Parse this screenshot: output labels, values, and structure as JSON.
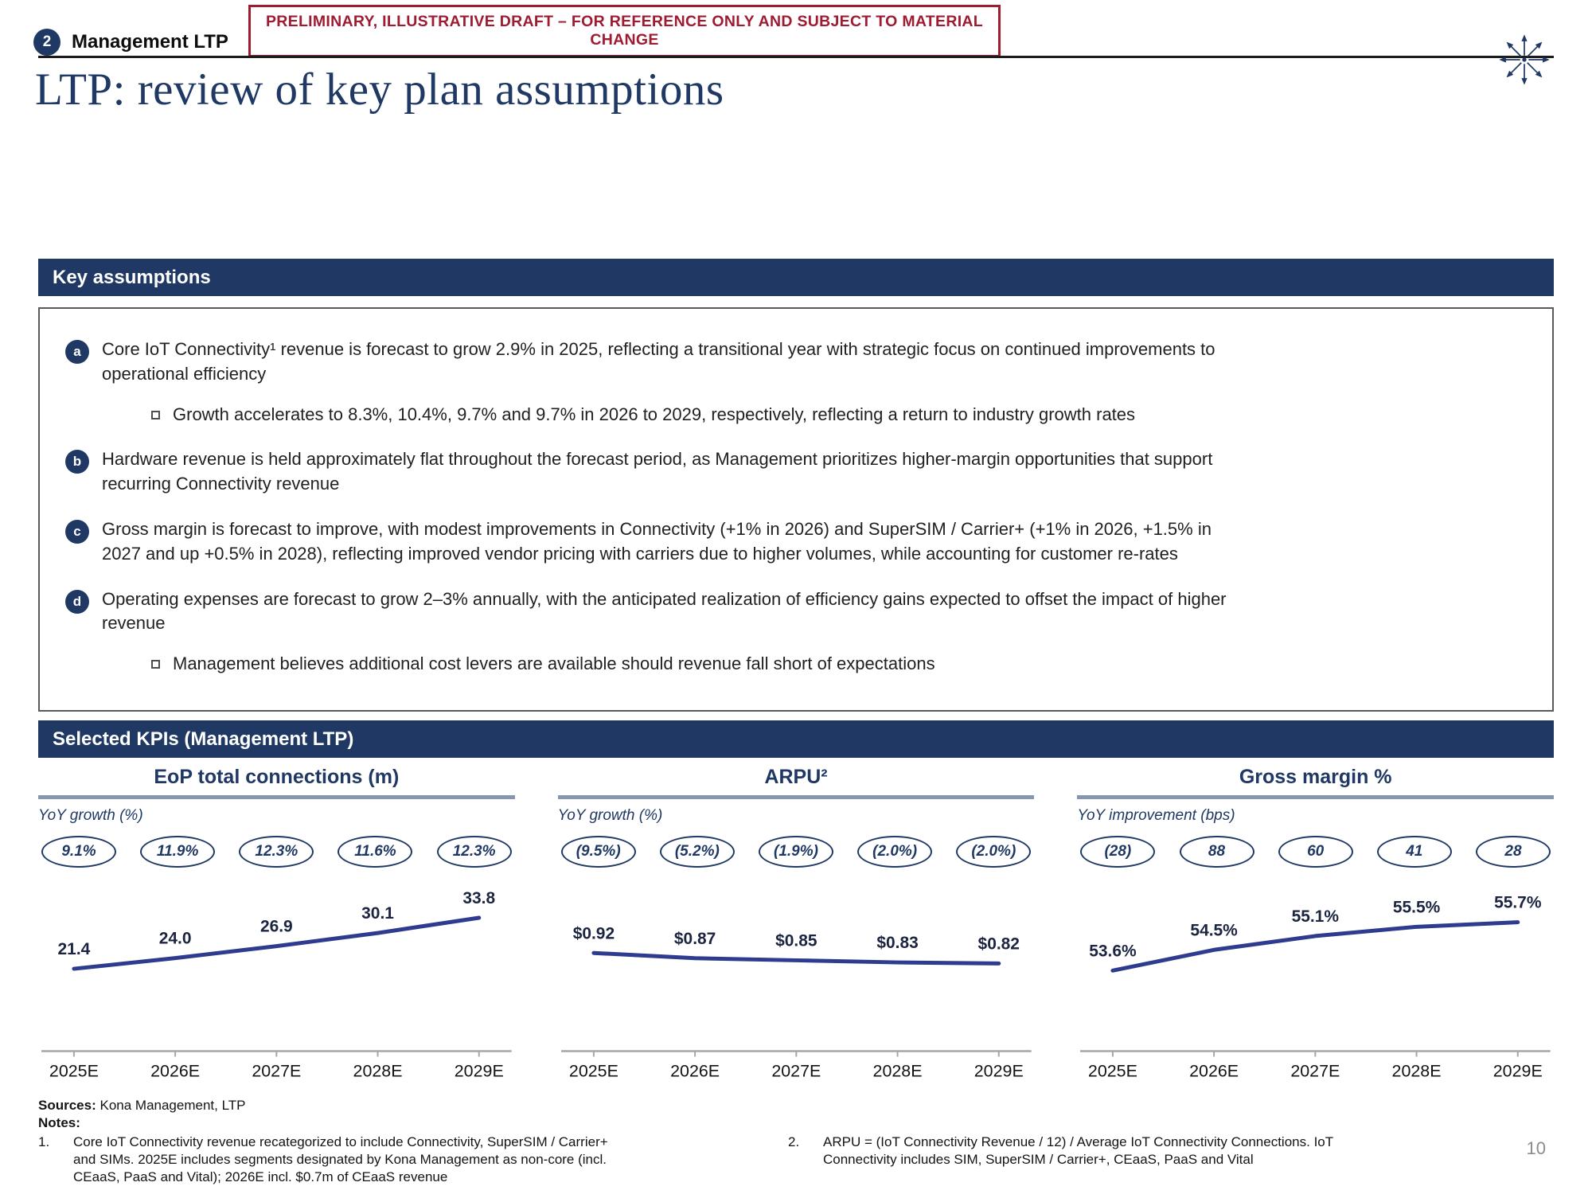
{
  "banner": {
    "text": "PRELIMINARY, ILLUSTRATIVE DRAFT – FOR REFERENCE ONLY AND SUBJECT TO MATERIAL CHANGE"
  },
  "header": {
    "section_number": "2",
    "section_label": "Management LTP",
    "logo": "starburst-logo"
  },
  "page": {
    "title": "LTP: review of key plan assumptions",
    "number": "10"
  },
  "key_assumptions": {
    "header": "Key assumptions",
    "items": [
      {
        "marker": "a",
        "text": "Core IoT Connectivity¹ revenue is forecast to grow 2.9% in 2025, reflecting a transitional year with strategic focus on continued improvements to operational efficiency",
        "subs": [
          "Growth accelerates to 8.3%, 10.4%, 9.7% and 9.7% in 2026 to 2029, respectively, reflecting a return to industry growth rates"
        ]
      },
      {
        "marker": "b",
        "text": "Hardware revenue is held approximately flat throughout the forecast period, as Management prioritizes higher-margin opportunities that support recurring Connectivity revenue",
        "subs": []
      },
      {
        "marker": "c",
        "text": "Gross margin is forecast to improve, with modest improvements in Connectivity (+1% in 2026) and SuperSIM / Carrier+ (+1% in 2026, +1.5% in 2027 and up +0.5% in 2028), reflecting improved vendor pricing with carriers due to higher volumes, while accounting for customer re-rates",
        "subs": []
      },
      {
        "marker": "d",
        "text": "Operating expenses are forecast to grow 2–3% annually, with the anticipated realization of efficiency gains expected to offset the impact of higher revenue",
        "subs": [
          "Management believes additional cost levers are available should revenue fall short of expectations"
        ]
      }
    ]
  },
  "kpis": {
    "header": "Selected KPIs (Management LTP)"
  },
  "chart_data": [
    {
      "type": "line",
      "title": "EoP total connections (m)",
      "subtitle": "YoY growth (%)",
      "badges": [
        "9.1%",
        "11.9%",
        "12.3%",
        "11.6%",
        "12.3%"
      ],
      "categories": [
        "2025E",
        "2026E",
        "2027E",
        "2028E",
        "2029E"
      ],
      "values": [
        21.4,
        24.0,
        26.9,
        30.1,
        33.8
      ],
      "labels": [
        "21.4",
        "24.0",
        "26.9",
        "30.1",
        "33.8"
      ],
      "ylim": [
        12,
        40
      ],
      "legend": "none",
      "grid": false
    },
    {
      "type": "line",
      "title": "ARPU²",
      "subtitle": "YoY growth (%)",
      "badges": [
        "(9.5%)",
        "(5.2%)",
        "(1.9%)",
        "(2.0%)",
        "(2.0%)"
      ],
      "categories": [
        "2025E",
        "2026E",
        "2027E",
        "2028E",
        "2029E"
      ],
      "values": [
        0.92,
        0.87,
        0.85,
        0.83,
        0.82
      ],
      "labels": [
        "$0.92",
        "$0.87",
        "$0.85",
        "$0.83",
        "$0.82"
      ],
      "ylim": [
        0.4,
        1.5
      ],
      "legend": "none",
      "grid": false
    },
    {
      "type": "line",
      "title": "Gross margin %",
      "subtitle": "YoY improvement (bps)",
      "badges": [
        "(28)",
        "88",
        "60",
        "41",
        "28"
      ],
      "categories": [
        "2025E",
        "2026E",
        "2027E",
        "2028E",
        "2029E"
      ],
      "values": [
        53.6,
        54.5,
        55.1,
        55.5,
        55.7
      ],
      "labels": [
        "53.6%",
        "54.5%",
        "55.1%",
        "55.5%",
        "55.7%"
      ],
      "ylim": [
        52,
        57
      ],
      "legend": "none",
      "grid": false
    }
  ],
  "footer": {
    "sources_label": "Sources:",
    "sources_text": "Kona Management, LTP",
    "notes_label": "Notes:",
    "notes": [
      {
        "num": "1.",
        "text": "Core IoT Connectivity revenue recategorized to include Connectivity, SuperSIM / Carrier+ and SIMs. 2025E includes segments designated by Kona Management as non-core (incl. CEaaS, PaaS and Vital); 2026E incl. $0.7m of CEaaS revenue"
      },
      {
        "num": "2.",
        "text": "ARPU = (IoT Connectivity Revenue / 12) / Average IoT Connectivity Connections. IoT Connectivity includes SIM, SuperSIM / Carrier+, CEaaS, PaaS and Vital"
      }
    ]
  },
  "colors": {
    "navy": "#1F3864",
    "banner_red": "#9E1B32",
    "line": "#2E3B8F",
    "axis_gray": "#A6A6A6",
    "title_underline": "#8496B0"
  }
}
